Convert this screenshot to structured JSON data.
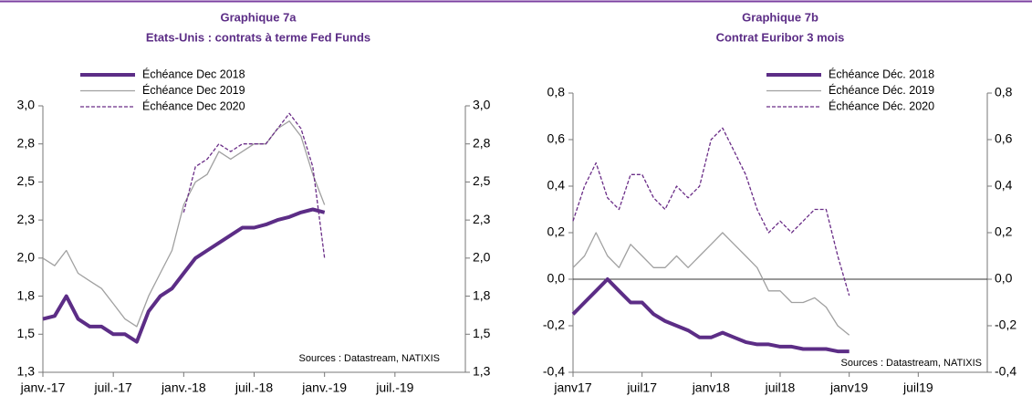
{
  "chart_data": [
    {
      "type": "line",
      "title": "Graphique 7a",
      "subtitle": "Etats-Unis : contrats à terme Fed Funds",
      "x": [
        "2017-01",
        "2017-02",
        "2017-03",
        "2017-04",
        "2017-05",
        "2017-06",
        "2017-07",
        "2017-08",
        "2017-09",
        "2017-10",
        "2017-11",
        "2017-12",
        "2018-01",
        "2018-02",
        "2018-03",
        "2018-04",
        "2018-05",
        "2018-06",
        "2018-07",
        "2018-08",
        "2018-09",
        "2018-10",
        "2018-11",
        "2018-12",
        "2019-01"
      ],
      "series": [
        {
          "name": "Échéance Dec 2018",
          "color": "#5c2d86",
          "linestyle": "solid",
          "values": [
            1.6,
            1.62,
            1.75,
            1.6,
            1.55,
            1.55,
            1.5,
            1.5,
            1.45,
            1.65,
            1.75,
            1.8,
            1.9,
            2.0,
            2.05,
            2.1,
            2.15,
            2.2,
            2.2,
            2.22,
            2.25,
            2.27,
            2.3,
            2.32,
            2.3
          ]
        },
        {
          "name": "Échéance Dec 2019",
          "color": "#a0a0a0",
          "linestyle": "solid",
          "values": [
            2.0,
            1.95,
            2.05,
            1.9,
            1.85,
            1.8,
            1.7,
            1.6,
            1.55,
            1.75,
            1.9,
            2.05,
            2.35,
            2.5,
            2.55,
            2.7,
            2.65,
            2.7,
            2.75,
            2.75,
            2.85,
            2.9,
            2.8,
            2.55,
            2.35
          ]
        },
        {
          "name": "Échéance Dec 2020",
          "color": "#6a2d87",
          "linestyle": "dashed",
          "values": [
            null,
            null,
            null,
            null,
            null,
            null,
            null,
            null,
            null,
            null,
            null,
            null,
            2.3,
            2.6,
            2.65,
            2.75,
            2.7,
            2.75,
            2.75,
            2.75,
            2.85,
            2.95,
            2.85,
            2.6,
            2.0
          ]
        }
      ],
      "xlim": [
        "2017-01",
        "2020-01"
      ],
      "xticks": [
        {
          "value": "2017-01",
          "label": "janv.-17"
        },
        {
          "value": "2017-07",
          "label": "juil.-17"
        },
        {
          "value": "2018-01",
          "label": "janv.-18"
        },
        {
          "value": "2018-07",
          "label": "juil.-18"
        },
        {
          "value": "2019-01",
          "label": "janv.-19"
        },
        {
          "value": "2019-07",
          "label": "juil.-19"
        }
      ],
      "ylim": [
        1.25,
        3.0
      ],
      "yticks": [
        {
          "value": 1.25,
          "label": "1,3"
        },
        {
          "value": 1.5,
          "label": "1,5"
        },
        {
          "value": 1.75,
          "label": "1,8"
        },
        {
          "value": 2.0,
          "label": "2,0"
        },
        {
          "value": 2.25,
          "label": "2,3"
        },
        {
          "value": 2.5,
          "label": "2,5"
        },
        {
          "value": 2.75,
          "label": "2,8"
        },
        {
          "value": 3.0,
          "label": "3,0"
        }
      ],
      "source": "Sources : Datastream, NATIXIS",
      "zeroline": false
    },
    {
      "type": "line",
      "title": "Graphique 7b",
      "subtitle": "Contrat Euribor 3 mois",
      "x": [
        "2017-01",
        "2017-02",
        "2017-03",
        "2017-04",
        "2017-05",
        "2017-06",
        "2017-07",
        "2017-08",
        "2017-09",
        "2017-10",
        "2017-11",
        "2017-12",
        "2018-01",
        "2018-02",
        "2018-03",
        "2018-04",
        "2018-05",
        "2018-06",
        "2018-07",
        "2018-08",
        "2018-09",
        "2018-10",
        "2018-11",
        "2018-12",
        "2019-01"
      ],
      "series": [
        {
          "name": "Échéance Déc. 2018",
          "color": "#5c2d86",
          "linestyle": "solid",
          "values": [
            -0.15,
            -0.1,
            -0.05,
            0.0,
            -0.05,
            -0.1,
            -0.1,
            -0.15,
            -0.18,
            -0.2,
            -0.22,
            -0.25,
            -0.25,
            -0.23,
            -0.25,
            -0.27,
            -0.28,
            -0.28,
            -0.29,
            -0.29,
            -0.3,
            -0.3,
            -0.3,
            -0.31,
            -0.31
          ]
        },
        {
          "name": "Échéance Déc. 2019",
          "color": "#a0a0a0",
          "linestyle": "solid",
          "values": [
            0.05,
            0.1,
            0.2,
            0.1,
            0.05,
            0.15,
            0.1,
            0.05,
            0.05,
            0.1,
            0.05,
            0.1,
            0.15,
            0.2,
            0.15,
            0.1,
            0.05,
            -0.05,
            -0.05,
            -0.1,
            -0.1,
            -0.08,
            -0.12,
            -0.2,
            -0.24
          ]
        },
        {
          "name": "Échéance Déc. 2020",
          "color": "#6a2d87",
          "linestyle": "dashed",
          "values": [
            0.25,
            0.4,
            0.5,
            0.35,
            0.3,
            0.45,
            0.45,
            0.35,
            0.3,
            0.4,
            0.35,
            0.4,
            0.6,
            0.65,
            0.55,
            0.45,
            0.3,
            0.2,
            0.25,
            0.2,
            0.25,
            0.3,
            0.3,
            0.1,
            -0.07
          ]
        }
      ],
      "xlim": [
        "2017-01",
        "2020-01"
      ],
      "xticks": [
        {
          "value": "2017-01",
          "label": "janv17"
        },
        {
          "value": "2017-07",
          "label": "juil17"
        },
        {
          "value": "2018-01",
          "label": "janv18"
        },
        {
          "value": "2018-07",
          "label": "juil18"
        },
        {
          "value": "2019-01",
          "label": "janv19"
        },
        {
          "value": "2019-07",
          "label": "juil19"
        }
      ],
      "ylim": [
        -0.4,
        0.8
      ],
      "yticks": [
        {
          "value": -0.4,
          "label": "-0,4"
        },
        {
          "value": -0.2,
          "label": "-0,2"
        },
        {
          "value": 0,
          "label": "0,0"
        },
        {
          "value": 0.2,
          "label": "0,2"
        },
        {
          "value": 0.4,
          "label": "0,4"
        },
        {
          "value": 0.6,
          "label": "0,6"
        },
        {
          "value": 0.8,
          "label": "0,8"
        }
      ],
      "source": "Sources : Datastream, NATIXIS",
      "zeroline": true
    }
  ]
}
